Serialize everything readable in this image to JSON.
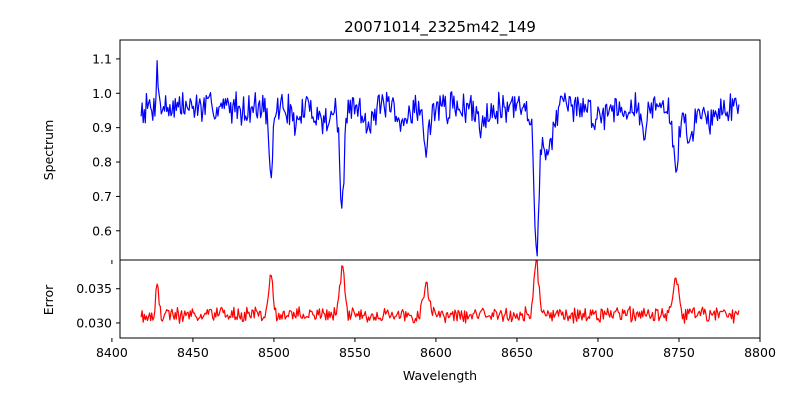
{
  "chart_data": {
    "type": "line",
    "title": "20071014_2325m42_149",
    "xlabel": "Wavelength",
    "x_range": [
      8418,
      8787
    ],
    "xlim": [
      8405,
      8800
    ],
    "x_ticks": [
      "8400",
      "8450",
      "8500",
      "8550",
      "8600",
      "8650",
      "8700",
      "8750",
      "8800"
    ],
    "panels": [
      {
        "name": "spectrum",
        "ylabel": "Spectrum",
        "ylim": [
          0.515,
          1.155
        ],
        "y_ticks": [
          "0.6",
          "0.7",
          "0.8",
          "0.9",
          "1.0",
          "1.1"
        ],
        "color": "#0000ff",
        "baseline": 0.96,
        "noise": 0.045,
        "features": [
          {
            "center": 8428,
            "depth": -0.14,
            "width": 0.6
          },
          {
            "center": 8498,
            "depth": 0.22,
            "width": 1.2
          },
          {
            "center": 8514,
            "depth": 0.05,
            "width": 2.5
          },
          {
            "center": 8542,
            "depth": 0.3,
            "width": 1.3
          },
          {
            "center": 8531,
            "depth": 0.04,
            "width": 4
          },
          {
            "center": 8558,
            "depth": 0.04,
            "width": 3
          },
          {
            "center": 8578,
            "depth": 0.06,
            "width": 3
          },
          {
            "center": 8594,
            "depth": 0.13,
            "width": 1.6
          },
          {
            "center": 8628,
            "depth": 0.04,
            "width": 3
          },
          {
            "center": 8662,
            "depth": 0.4,
            "width": 1.4
          },
          {
            "center": 8668,
            "depth": 0.12,
            "width": 4
          },
          {
            "center": 8700,
            "depth": 0.03,
            "width": 3
          },
          {
            "center": 8728,
            "depth": 0.05,
            "width": 2
          },
          {
            "center": 8748,
            "depth": 0.18,
            "width": 1.8
          },
          {
            "center": 8757,
            "depth": 0.08,
            "width": 3
          },
          {
            "center": 8771,
            "depth": 0.04,
            "width": 2.5
          }
        ],
        "seed": 7
      },
      {
        "name": "error",
        "ylabel": "Error",
        "ylim": [
          0.0278,
          0.0392
        ],
        "y_ticks": [
          "0.030",
          "0.035"
        ],
        "color": "#ff0000",
        "baseline": 0.0312,
        "noise": 0.0011,
        "features": [
          {
            "center": 8428,
            "depth": -0.0045,
            "width": 0.8
          },
          {
            "center": 8498,
            "depth": -0.0055,
            "width": 1.2
          },
          {
            "center": 8542,
            "depth": -0.0068,
            "width": 1.4
          },
          {
            "center": 8594,
            "depth": -0.004,
            "width": 2.0
          },
          {
            "center": 8662,
            "depth": -0.0078,
            "width": 1.4
          },
          {
            "center": 8748,
            "depth": -0.0048,
            "width": 1.8
          }
        ],
        "seed": 19
      }
    ]
  }
}
